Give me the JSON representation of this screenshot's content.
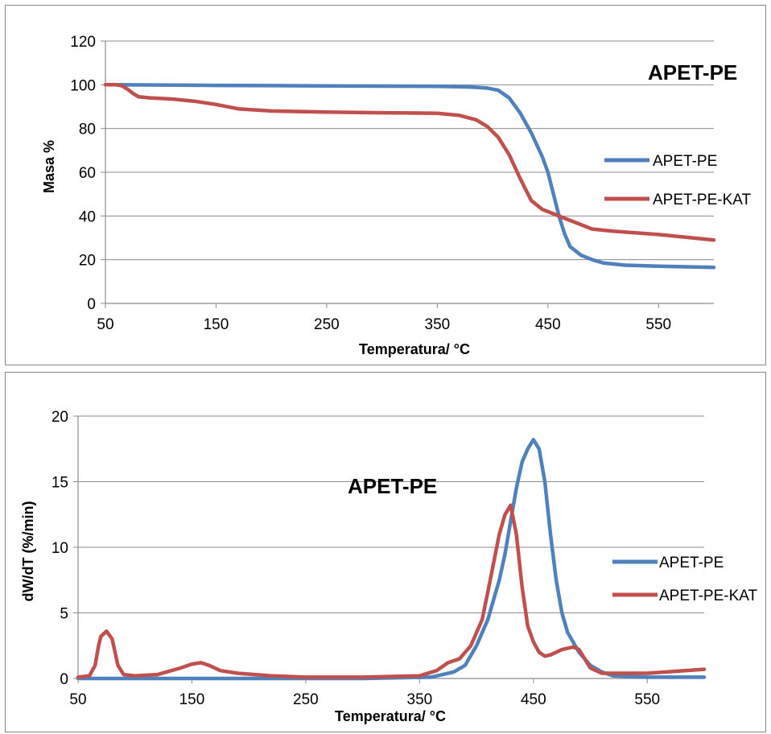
{
  "chart_data": [
    {
      "type": "line",
      "title": "",
      "annotation": "APET-PE",
      "xlabel": "Temperatura/ °C",
      "ylabel": "Masa %",
      "xlim": [
        50,
        600
      ],
      "ylim": [
        0,
        120
      ],
      "xticks": [
        50,
        150,
        250,
        350,
        450,
        550
      ],
      "yticks": [
        0,
        20,
        40,
        60,
        80,
        100,
        120
      ],
      "grid": "horizontal",
      "legend_position": "right",
      "series": [
        {
          "name": "APET-PE",
          "color": "#4F81BD",
          "x": [
            50,
            100,
            150,
            200,
            250,
            300,
            350,
            380,
            395,
            405,
            415,
            425,
            435,
            445,
            450,
            455,
            460,
            465,
            470,
            480,
            490,
            500,
            520,
            550,
            600
          ],
          "y": [
            100,
            99.9,
            99.7,
            99.6,
            99.5,
            99.4,
            99.3,
            99,
            98.5,
            97.5,
            94,
            87,
            78,
            67,
            60,
            50,
            40,
            32,
            26,
            22,
            20,
            18.5,
            17.5,
            17,
            16.5
          ]
        },
        {
          "name": "APET-PE-KAT",
          "color": "#C0504D",
          "x": [
            50,
            60,
            65,
            70,
            75,
            80,
            90,
            110,
            130,
            150,
            170,
            200,
            250,
            300,
            350,
            370,
            385,
            395,
            405,
            415,
            425,
            435,
            445,
            455,
            465,
            475,
            490,
            510,
            550,
            600
          ],
          "y": [
            100,
            100,
            99.5,
            98,
            96,
            94.5,
            94,
            93.5,
            92.5,
            91,
            89,
            88,
            87.5,
            87.2,
            87,
            86,
            84,
            81,
            76,
            68,
            57,
            47,
            43,
            41,
            39,
            37,
            34,
            33,
            31.5,
            29
          ]
        }
      ]
    },
    {
      "type": "line",
      "title": "",
      "annotation": "APET-PE",
      "xlabel": "Temperatura/ °C",
      "ylabel": "dW/dT (%/min)",
      "xlim": [
        50,
        600
      ],
      "ylim": [
        0,
        20
      ],
      "xticks": [
        50,
        150,
        250,
        350,
        450,
        550
      ],
      "yticks": [
        0,
        5,
        10,
        15,
        20
      ],
      "grid": "horizontal",
      "legend_position": "right",
      "series": [
        {
          "name": "APET-PE",
          "color": "#4F81BD",
          "x": [
            50,
            100,
            200,
            300,
            360,
            380,
            390,
            400,
            410,
            420,
            425,
            430,
            435,
            440,
            445,
            450,
            455,
            460,
            465,
            470,
            475,
            480,
            490,
            500,
            510,
            520,
            550,
            600
          ],
          "y": [
            0,
            0,
            0,
            0,
            0.1,
            0.5,
            1,
            2.5,
            4.5,
            7.5,
            9.5,
            12,
            14.5,
            16.5,
            17.5,
            18.2,
            17.5,
            15,
            11,
            7.5,
            5,
            3.5,
            2,
            1,
            0.5,
            0.2,
            0.1,
            0.1
          ]
        },
        {
          "name": "APET-PE-KAT",
          "color": "#C0504D",
          "x": [
            50,
            60,
            65,
            68,
            70,
            75,
            80,
            85,
            90,
            100,
            120,
            140,
            150,
            158,
            165,
            175,
            190,
            220,
            250,
            300,
            350,
            365,
            375,
            385,
            395,
            405,
            412,
            420,
            425,
            430,
            435,
            440,
            445,
            450,
            455,
            460,
            465,
            470,
            475,
            485,
            490,
            495,
            500,
            510,
            550,
            600
          ],
          "y": [
            0.1,
            0.2,
            1,
            2.5,
            3.2,
            3.6,
            3,
            1,
            0.3,
            0.2,
            0.3,
            0.8,
            1.1,
            1.2,
            1,
            0.6,
            0.4,
            0.2,
            0.1,
            0.1,
            0.2,
            0.6,
            1.2,
            1.5,
            2.5,
            4.5,
            7.5,
            11,
            12.5,
            13.2,
            11,
            7,
            4,
            2.8,
            2,
            1.7,
            1.8,
            2,
            2.2,
            2.4,
            2.2,
            1.5,
            0.8,
            0.4,
            0.4,
            0.7
          ]
        }
      ]
    }
  ]
}
